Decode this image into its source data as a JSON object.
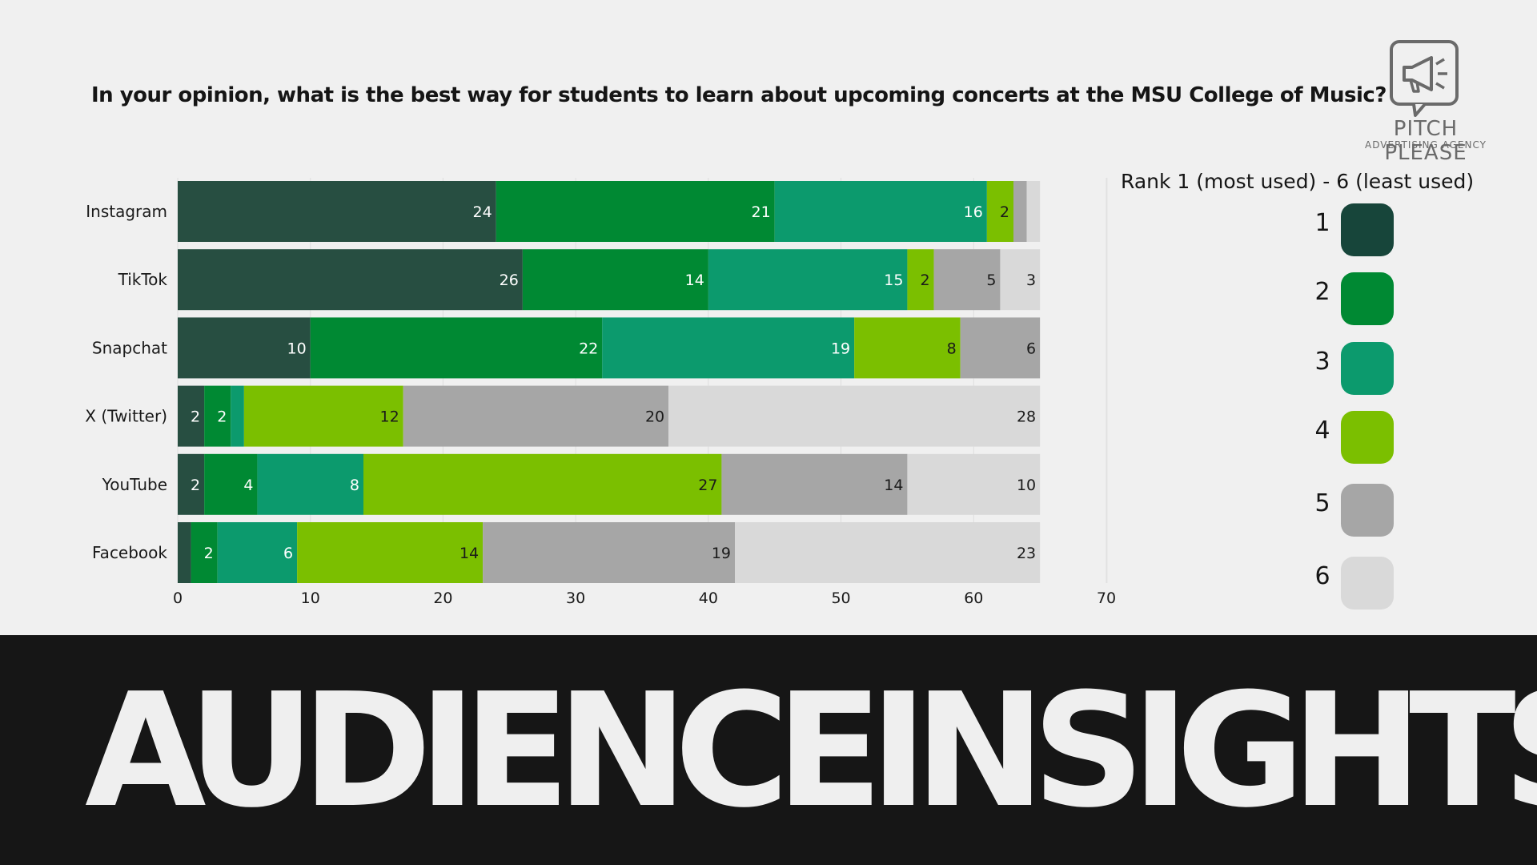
{
  "question": "In your opinion, what is the best way for students to learn about upcoming concerts at the MSU College of Music?",
  "logo": {
    "name": "PITCH PLEASE",
    "tagline": "ADVERTISING AGENCY",
    "icon": "megaphone-speech-bubble-icon"
  },
  "banner": {
    "text": "AUDIENCEINSIGHTS"
  },
  "legend": {
    "title": "Rank 1 (most used) - 6 (least used)"
  },
  "chart_data": {
    "type": "bar",
    "orientation": "horizontal",
    "stacked": true,
    "categories": [
      "Instagram",
      "TikTok",
      "Snapchat",
      "X (Twitter)",
      "YouTube",
      "Facebook"
    ],
    "series": [
      {
        "name": "1",
        "color": "#274e41",
        "values": [
          24,
          26,
          10,
          2,
          2,
          1
        ]
      },
      {
        "name": "2",
        "color": "#008933",
        "values": [
          21,
          14,
          22,
          2,
          4,
          2
        ]
      },
      {
        "name": "3",
        "color": "#0c9a6d",
        "values": [
          16,
          15,
          19,
          1,
          8,
          6
        ]
      },
      {
        "name": "4",
        "color": "#7bbf00",
        "values": [
          2,
          2,
          8,
          12,
          27,
          14
        ]
      },
      {
        "name": "5",
        "color": "#a6a6a6",
        "values": [
          1,
          5,
          6,
          20,
          14,
          19
        ]
      },
      {
        "name": "6",
        "color": "#d9d9d9",
        "values": [
          1,
          3,
          0,
          28,
          10,
          23
        ]
      }
    ],
    "data_labels": [
      [
        "24",
        "21",
        "16",
        "2",
        "",
        ""
      ],
      [
        "26",
        "14",
        "15",
        "2",
        "5",
        "3"
      ],
      [
        "10",
        "22",
        "19",
        "8",
        "6",
        ""
      ],
      [
        "2",
        "2",
        "",
        "12",
        "20",
        "28"
      ],
      [
        "2",
        "4",
        "8",
        "27",
        "14",
        "10"
      ],
      [
        "",
        "2",
        "6",
        "14",
        "19",
        "23"
      ]
    ],
    "xlim": [
      0,
      70
    ],
    "xticks": [
      0,
      10,
      20,
      30,
      40,
      50,
      60,
      70
    ],
    "grid": true,
    "legend_position": "right",
    "legend_colors": [
      "#17453a",
      "#008933",
      "#0c9a6d",
      "#7bbf00",
      "#a6a6a6",
      "#d9d9d9"
    ]
  }
}
